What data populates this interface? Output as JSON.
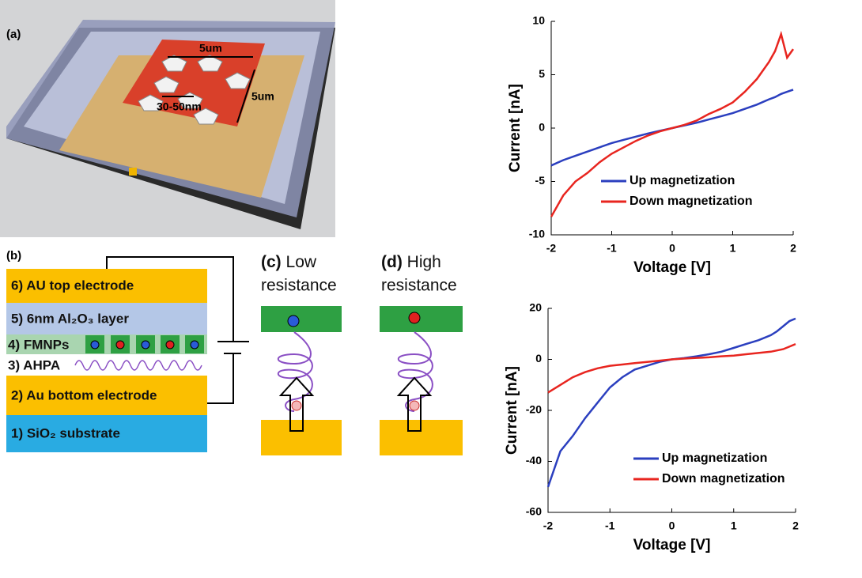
{
  "panel_a": {
    "label": "(a)",
    "dims": [
      "5um",
      "5um",
      "30-50nm"
    ]
  },
  "panel_b": {
    "label": "(b)",
    "layers": [
      "6) AU top electrode",
      "5) 6nm Al₂O₃ layer",
      "4) FMNPs",
      "3) AHPA",
      "2) Au bottom electrode",
      "1) SiO₂ substrate"
    ]
  },
  "panel_c": {
    "label": "(c)",
    "lines": [
      "Low",
      "resistance"
    ]
  },
  "panel_d": {
    "label": "(d)",
    "lines": [
      "High",
      "resistance"
    ]
  },
  "chart_data": [
    {
      "type": "line",
      "xlabel": "Voltage [V]",
      "ylabel": "Current [nA]",
      "x": [
        -2,
        -1.8,
        -1.6,
        -1.4,
        -1.2,
        -1,
        -0.8,
        -0.6,
        -0.4,
        -0.2,
        0,
        0.2,
        0.4,
        0.6,
        0.8,
        1,
        1.2,
        1.4,
        1.6,
        1.7,
        1.8,
        1.9,
        2
      ],
      "xlim": [
        -2,
        2
      ],
      "ylim": [
        -10,
        10
      ],
      "xticks": [
        -2,
        -1,
        0,
        1,
        2
      ],
      "yticks": [
        -10,
        -5,
        0,
        5,
        10
      ],
      "legend": "lower center",
      "series": [
        {
          "name": "Up magnetization",
          "color": "#2b3fbf",
          "values": [
            -3.5,
            -3.0,
            -2.6,
            -2.2,
            -1.8,
            -1.4,
            -1.1,
            -0.8,
            -0.5,
            -0.25,
            0,
            0.25,
            0.5,
            0.8,
            1.1,
            1.4,
            1.8,
            2.2,
            2.7,
            2.9,
            3.2,
            3.4,
            3.6
          ]
        },
        {
          "name": "Down magnetization",
          "color": "#e8251f",
          "values": [
            -8.3,
            -6.3,
            -5,
            -4.2,
            -3.2,
            -2.4,
            -1.8,
            -1.2,
            -0.7,
            -0.3,
            0,
            0.3,
            0.7,
            1.3,
            1.8,
            2.4,
            3.4,
            4.6,
            6.2,
            7.2,
            8.8,
            6.6,
            7.4
          ]
        }
      ]
    },
    {
      "type": "line",
      "xlabel": "Voltage [V]",
      "ylabel": "Current [nA]",
      "x": [
        -2,
        -1.8,
        -1.6,
        -1.4,
        -1.2,
        -1,
        -0.8,
        -0.6,
        -0.4,
        -0.2,
        0,
        0.2,
        0.4,
        0.6,
        0.8,
        1,
        1.2,
        1.4,
        1.6,
        1.7,
        1.8,
        1.9,
        2
      ],
      "xlim": [
        -2,
        2
      ],
      "ylim": [
        -60,
        20
      ],
      "xticks": [
        -2,
        -1,
        0,
        1,
        2
      ],
      "yticks": [
        -60,
        -40,
        -20,
        0,
        20
      ],
      "legend": "lower right",
      "series": [
        {
          "name": "Up magnetization",
          "color": "#2b3fbf",
          "values": [
            -50,
            -36,
            -30,
            -23,
            -17,
            -11,
            -7,
            -4,
            -2.5,
            -1,
            0,
            0.5,
            1.2,
            2,
            3,
            4.5,
            6,
            7.5,
            9.5,
            11,
            13,
            15,
            16
          ]
        },
        {
          "name": "Down magnetization",
          "color": "#e8251f",
          "values": [
            -13,
            -10,
            -7,
            -5,
            -3.5,
            -2.5,
            -2,
            -1.5,
            -1,
            -0.5,
            0,
            0.3,
            0.6,
            0.8,
            1.2,
            1.5,
            2,
            2.5,
            3,
            3.5,
            4,
            5,
            6
          ]
        }
      ]
    }
  ]
}
